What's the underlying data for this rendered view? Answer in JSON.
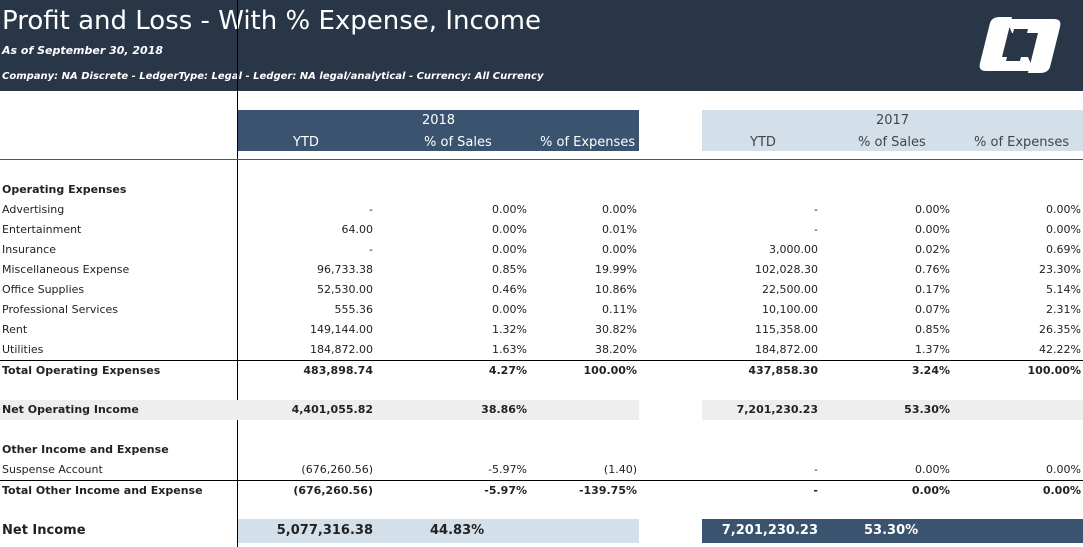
{
  "report": {
    "title": "Profit and Loss - With % Expense, Income",
    "as_of": "As of September 30, 2018",
    "filters": "Company: NA Discrete  - LedgerType: Legal  - Ledger: NA legal/analytical - Currency: All Currency"
  },
  "columns": {
    "year_2018": "2018",
    "year_2017": "2017",
    "ytd": "YTD",
    "pct_sales": "% of Sales",
    "pct_expenses": "% of Expenses"
  },
  "sections": {
    "operating": "Operating Expenses",
    "other": "Other Income and Expense"
  },
  "operating_rows": [
    {
      "label": "Advertising",
      "ytd18": "-",
      "sales18": "0.00%",
      "exp18": "0.00%",
      "ytd17": "-",
      "sales17": "0.00%",
      "exp17": "0.00%"
    },
    {
      "label": "Entertainment",
      "ytd18": "64.00",
      "sales18": "0.00%",
      "exp18": "0.01%",
      "ytd17": "-",
      "sales17": "0.00%",
      "exp17": "0.00%"
    },
    {
      "label": "Insurance",
      "ytd18": "-",
      "sales18": "0.00%",
      "exp18": "0.00%",
      "ytd17": "3,000.00",
      "sales17": "0.02%",
      "exp17": "0.69%"
    },
    {
      "label": "Miscellaneous Expense",
      "ytd18": "96,733.38",
      "sales18": "0.85%",
      "exp18": "19.99%",
      "ytd17": "102,028.30",
      "sales17": "0.76%",
      "exp17": "23.30%"
    },
    {
      "label": "Office Supplies",
      "ytd18": "52,530.00",
      "sales18": "0.46%",
      "exp18": "10.86%",
      "ytd17": "22,500.00",
      "sales17": "0.17%",
      "exp17": "5.14%"
    },
    {
      "label": "Professional Services",
      "ytd18": "555.36",
      "sales18": "0.00%",
      "exp18": "0.11%",
      "ytd17": "10,100.00",
      "sales17": "0.07%",
      "exp17": "2.31%"
    },
    {
      "label": "Rent",
      "ytd18": "149,144.00",
      "sales18": "1.32%",
      "exp18": "30.82%",
      "ytd17": "115,358.00",
      "sales17": "0.85%",
      "exp17": "26.35%"
    },
    {
      "label": "Utilities",
      "ytd18": "184,872.00",
      "sales18": "1.63%",
      "exp18": "38.20%",
      "ytd17": "184,872.00",
      "sales17": "1.37%",
      "exp17": "42.22%"
    }
  ],
  "total_operating": {
    "label": "Total Operating Expenses",
    "ytd18": "483,898.74",
    "sales18": "4.27%",
    "exp18": "100.00%",
    "ytd17": "437,858.30",
    "sales17": "3.24%",
    "exp17": "100.00%"
  },
  "net_operating": {
    "label": "Net Operating Income",
    "ytd18": "4,401,055.82",
    "sales18": "38.86%",
    "ytd17": "7,201,230.23",
    "sales17": "53.30%"
  },
  "other_rows": [
    {
      "label": "Suspense Account",
      "ytd18": "(676,260.56)",
      "sales18": "-5.97%",
      "exp18": "(1.40)",
      "ytd17": "-",
      "sales17": "0.00%",
      "exp17": "0.00%"
    }
  ],
  "total_other": {
    "label": "Total Other Income and Expense",
    "ytd18": "(676,260.56)",
    "sales18": "-5.97%",
    "exp18": "-139.75%",
    "ytd17": "-",
    "sales17": "0.00%",
    "exp17": "0.00%"
  },
  "net_income": {
    "label": "Net Income",
    "ytd18": "5,077,316.38",
    "sales18": "44.83%",
    "ytd17": "7,201,230.23",
    "sales17": "53.30%"
  },
  "colors": {
    "header_bg": "#283648",
    "col2018_bg": "#3a536f",
    "col2017_bg": "#d3e0ea"
  },
  "logo_icon": "company-logo-icon"
}
